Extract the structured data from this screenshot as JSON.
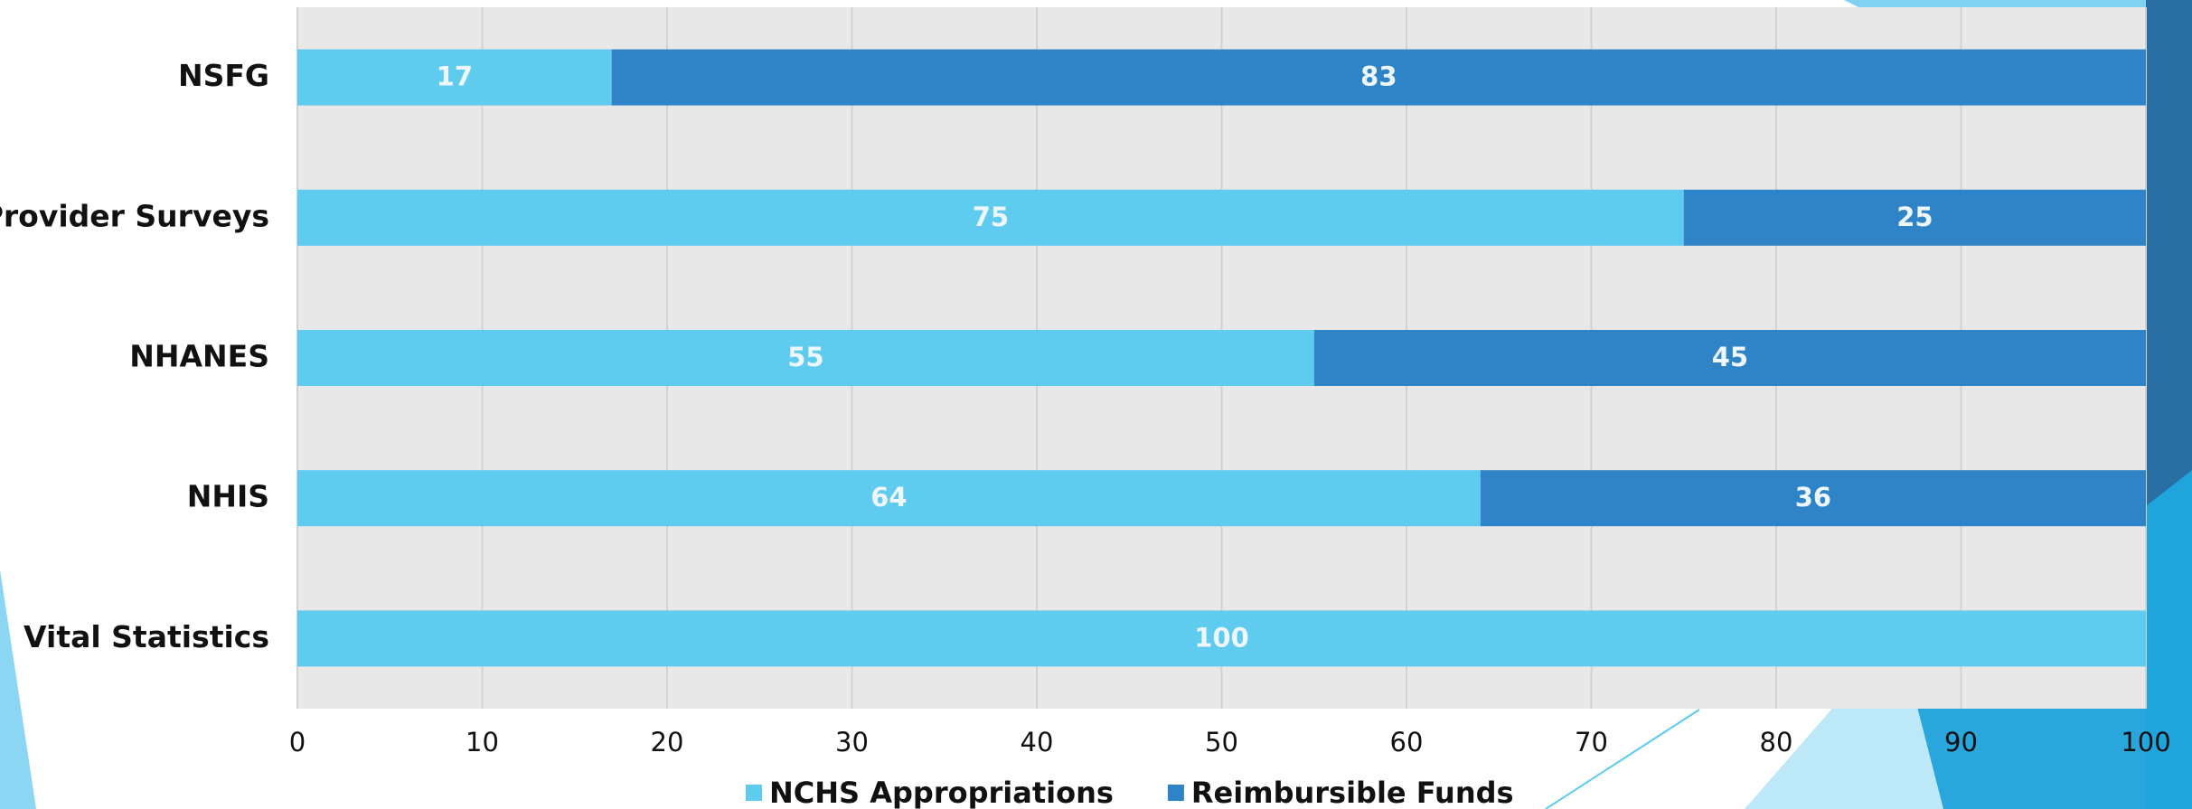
{
  "chart_data": {
    "type": "stacked-barh",
    "categories": [
      "NSFG",
      "Provider Surveys",
      "NHANES",
      "NHIS",
      "Vital Statistics"
    ],
    "series": [
      {
        "name": "NCHS Appropriations",
        "color": "#5ecbef",
        "values": [
          17,
          75,
          55,
          64,
          100
        ]
      },
      {
        "name": "Reimbursible Funds",
        "color": "#2e84c6",
        "values": [
          83,
          25,
          45,
          36,
          null
        ]
      }
    ],
    "xlim": [
      0,
      100
    ],
    "xticks": [
      0,
      10,
      20,
      30,
      40,
      50,
      60,
      70,
      80,
      90,
      100
    ],
    "grid": true
  }
}
